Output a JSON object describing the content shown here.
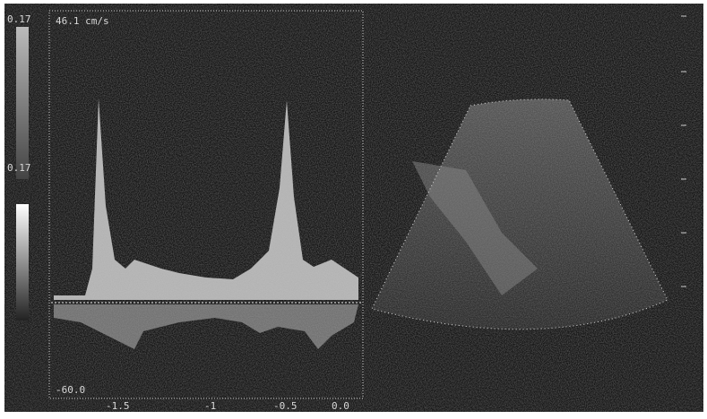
{
  "scale_labels": {
    "top": "0.17",
    "middle": "0.17"
  },
  "doppler": {
    "velocity_label": "46.1 cm/s",
    "baseline_label": "-60.0",
    "time_labels": [
      "-1.5",
      "-1",
      "-0.5",
      "0.0"
    ]
  }
}
